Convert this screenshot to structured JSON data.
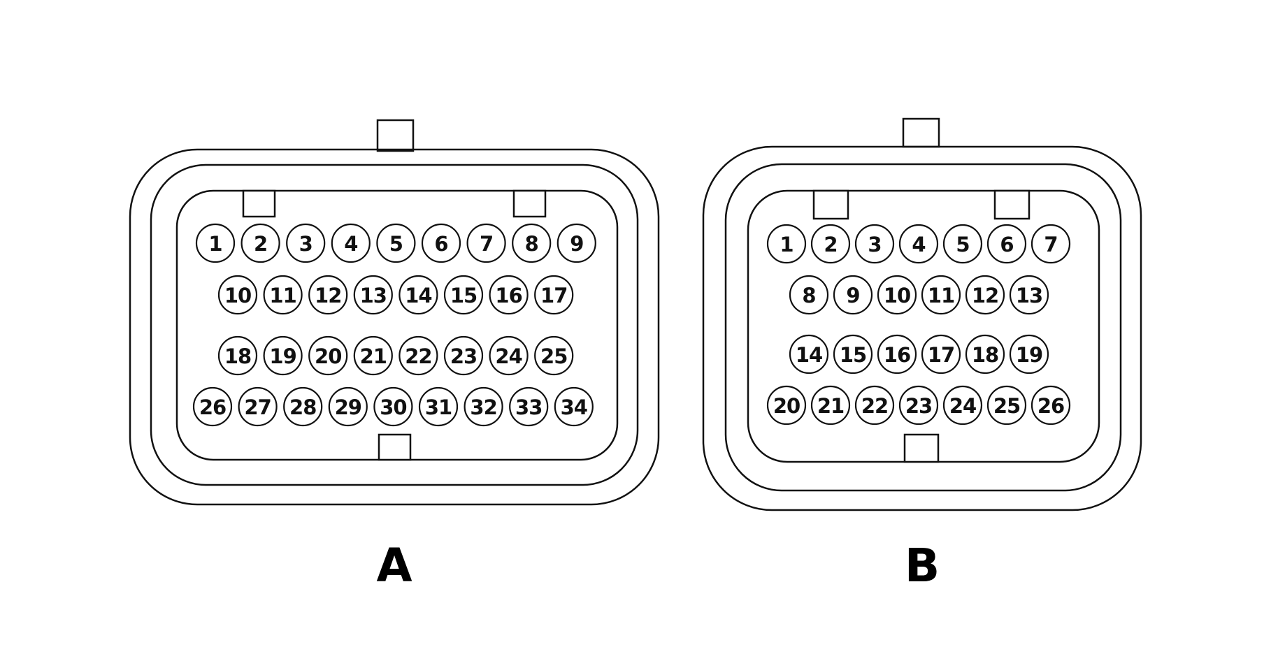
{
  "connectors": [
    {
      "label": "A",
      "rows": [
        [
          "1",
          "2",
          "3",
          "4",
          "5",
          "6",
          "7",
          "8",
          "9"
        ],
        [
          "10",
          "11",
          "12",
          "13",
          "14",
          "15",
          "16",
          "17"
        ],
        [
          "18",
          "19",
          "20",
          "21",
          "22",
          "23",
          "24",
          "25"
        ],
        [
          "26",
          "27",
          "28",
          "29",
          "30",
          "31",
          "32",
          "33",
          "34"
        ]
      ]
    },
    {
      "label": "B",
      "rows": [
        [
          "1",
          "2",
          "3",
          "4",
          "5",
          "6",
          "7"
        ],
        [
          "8",
          "9",
          "10",
          "11",
          "12",
          "13"
        ],
        [
          "14",
          "15",
          "16",
          "17",
          "18",
          "19"
        ],
        [
          "20",
          "21",
          "22",
          "23",
          "24",
          "25",
          "26"
        ]
      ]
    }
  ]
}
